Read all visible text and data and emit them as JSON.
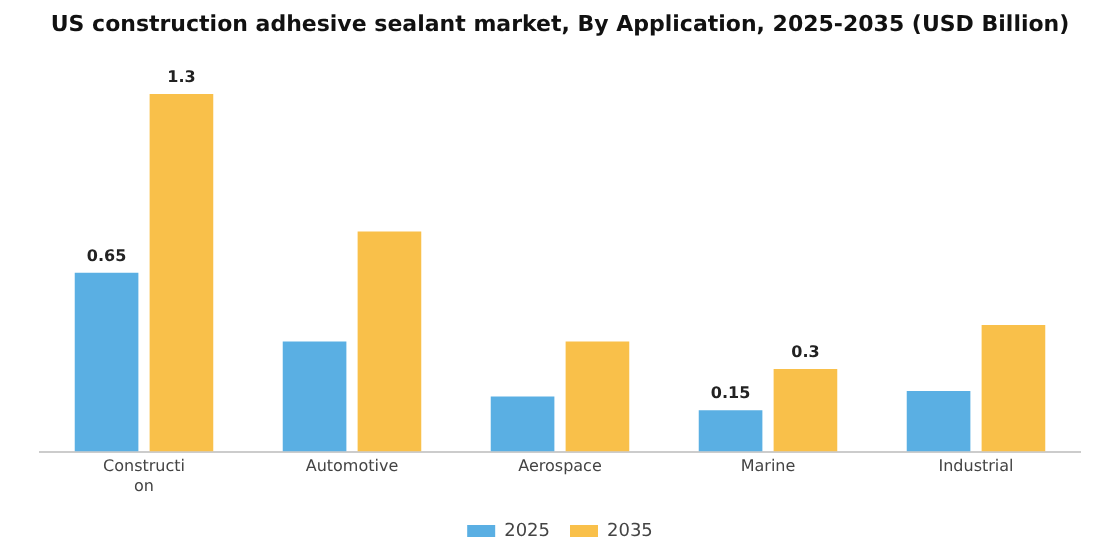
{
  "chart_data": {
    "type": "bar",
    "title": "US construction adhesive sealant market, By Application, 2025-2035 (USD Billion)",
    "categories": [
      "Construction",
      "Automotive",
      "Aerospace",
      "Marine",
      "Industrial"
    ],
    "series": [
      {
        "name": "2025",
        "color": "#5aafe3",
        "values": [
          0.65,
          0.4,
          0.2,
          0.15,
          0.22
        ],
        "value_labels": [
          "0.65",
          null,
          null,
          "0.15",
          null
        ]
      },
      {
        "name": "2035",
        "color": "#f9c04a",
        "values": [
          1.3,
          0.8,
          0.4,
          0.3,
          0.46
        ],
        "value_labels": [
          "1.3",
          null,
          null,
          "0.3",
          null
        ]
      }
    ],
    "legend": "bottom",
    "grid": false
  }
}
